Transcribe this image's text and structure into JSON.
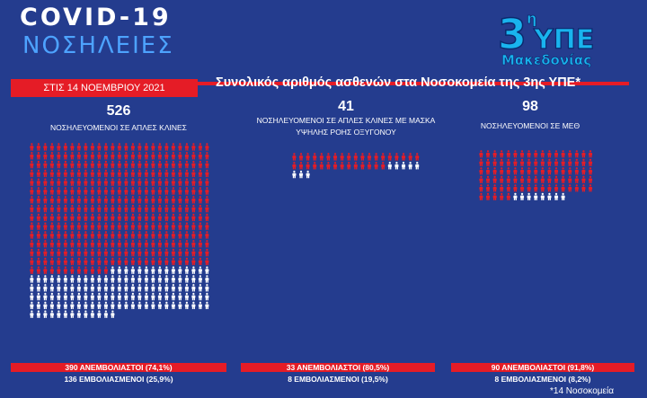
{
  "header": {
    "title_line1": "COVID-19",
    "title_line2": "ΝΟΣΗΛΕΙΕΣ",
    "date_label": "ΣΤΙΣ 14 ΝΟΕΜΒΡΙΟΥ 2021",
    "subtitle": "Συνολικός αριθμός ασθενών στα Νοσοκομεία της 3ης ΥΠΕ*"
  },
  "logo": {
    "main": "3",
    "sup": "η",
    "line2": "ΥΠΕ",
    "line3": "Μακεδονίας"
  },
  "colors": {
    "background": "#243c8e",
    "unvaccinated": "#e51c26",
    "vaccinated": "#ffffff",
    "accent_blue": "#4da3ff"
  },
  "footnote": "*14 Νοσοκομεία",
  "chart_data": [
    {
      "type": "pictogram",
      "total": 526,
      "label": "ΝΟΣΗΛΕΥΟΜΕΝΟΙ ΣΕ ΑΠΛΕΣ ΚΛΙΝΕΣ",
      "label_line2": "",
      "series": [
        {
          "name": "ΑΝΕΜΒΟΛΙΑΣΤΟΙ",
          "value": 390,
          "percent": "74,1%",
          "color": "#e51c26"
        },
        {
          "name": "ΕΜΒΟΛΙΑΣΜΕΝΟΙ",
          "value": 136,
          "percent": "25,9%",
          "color": "#ffffff"
        }
      ],
      "caption_red": "390 ΑΝΕΜΒΟΛΙΑΣΤΟΙ (74,1%)",
      "caption_white": "136 ΕΜΒΟΛΙΑΣΜΕΝΟΙ (25,9%)"
    },
    {
      "type": "pictogram",
      "total": 41,
      "label": "ΝΟΣΗΛΕΥΟΜΕΝΟΙ ΣΕ ΑΠΛΕΣ ΚΛΙΝΕΣ ΜΕ ΜΑΣΚΑ",
      "label_line2": "ΥΨΗΛΗΣ ΡΟΗΣ ΟΞΥΓΟΝΟΥ",
      "series": [
        {
          "name": "ΑΝΕΜΒΟΛΙΑΣΤΟΙ",
          "value": 33,
          "percent": "80,5%",
          "color": "#e51c26"
        },
        {
          "name": "ΕΜΒΟΛΙΑΣΜΕΝΟΙ",
          "value": 8,
          "percent": "19,5%",
          "color": "#ffffff"
        }
      ],
      "caption_red": "33 ΑΝΕΜΒΟΛΙΑΣΤΟΙ (80,5%)",
      "caption_white": "8 ΕΜΒΟΛΙΑΣΜΕΝΟΙ (19,5%)"
    },
    {
      "type": "pictogram",
      "total": 98,
      "label": "ΝΟΣΗΛΕΥΟΜΕΝΟΙ ΣΕ ΜΕΘ",
      "label_line2": "",
      "series": [
        {
          "name": "ΑΝΕΜΒΟΛΙΑΣΤΟΙ",
          "value": 90,
          "percent": "91,8%",
          "color": "#e51c26"
        },
        {
          "name": "ΕΜΒΟΛΙΑΣΜΕΝΟΙ",
          "value": 8,
          "percent": "8,2%",
          "color": "#ffffff"
        }
      ],
      "caption_red": "90 ΑΝΕΜΒΟΛΙΑΣΤΟΙ (91,8%)",
      "caption_white": "8 ΕΜΒΟΛΙΑΣΜΕΝΟΙ (8,2%)"
    }
  ]
}
